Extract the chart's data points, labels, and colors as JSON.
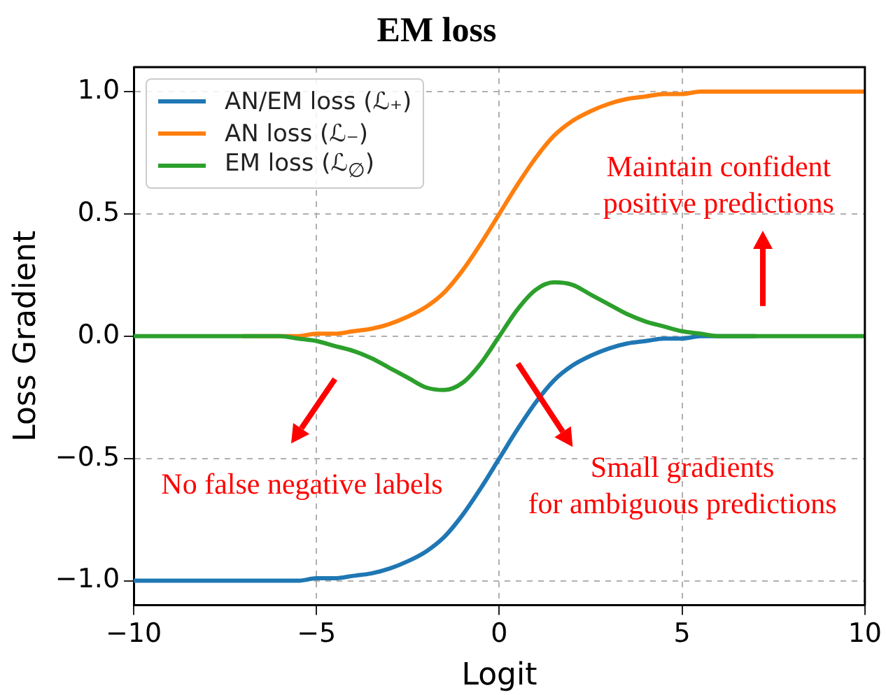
{
  "chart_data": {
    "type": "line",
    "title": "EM loss",
    "xlabel": "Logit",
    "ylabel": "Loss Gradient",
    "x": [
      -10,
      -8,
      -7,
      -6,
      -5.5,
      -5,
      -4.5,
      -4,
      -3.5,
      -3,
      -2.5,
      -2,
      -1.5,
      -1,
      -0.5,
      0,
      0.5,
      1,
      1.5,
      2,
      2.5,
      3,
      3.5,
      4,
      4.5,
      5,
      5.5,
      6,
      7,
      8,
      10
    ],
    "series": [
      {
        "name": "AN/EM loss (ℒ₊)",
        "color": "#1f77b4",
        "values": [
          -1,
          -1,
          -1,
          -1,
          -1,
          -0.99,
          -0.99,
          -0.98,
          -0.97,
          -0.95,
          -0.92,
          -0.88,
          -0.82,
          -0.73,
          -0.62,
          -0.5,
          -0.38,
          -0.27,
          -0.18,
          -0.12,
          -0.08,
          -0.05,
          -0.03,
          -0.02,
          -0.01,
          -0.01,
          0,
          0,
          0,
          null,
          null
        ]
      },
      {
        "name": "AN loss (ℒ₋)",
        "color": "#ff7f0e",
        "values": [
          null,
          null,
          0,
          0,
          0,
          0.01,
          0.01,
          0.02,
          0.03,
          0.05,
          0.08,
          0.12,
          0.18,
          0.27,
          0.38,
          0.5,
          0.62,
          0.73,
          0.82,
          0.88,
          0.92,
          0.95,
          0.97,
          0.98,
          0.99,
          0.99,
          1,
          1,
          1,
          1,
          1
        ]
      },
      {
        "name": "EM loss (ℒ$_{∅}$)",
        "color": "#2ca02c",
        "values": [
          0,
          0,
          0,
          0,
          -0.01,
          -0.02,
          -0.04,
          -0.06,
          -0.09,
          -0.13,
          -0.17,
          -0.21,
          -0.22,
          -0.19,
          -0.11,
          0,
          0.11,
          0.19,
          0.22,
          0.21,
          0.17,
          0.13,
          0.09,
          0.06,
          0.04,
          0.02,
          0.01,
          0,
          0,
          0,
          0
        ]
      }
    ],
    "xlim": [
      -10,
      10
    ],
    "ylim": [
      -1.1,
      1.1
    ],
    "xticks": [
      {
        "value": -10,
        "label": "−10"
      },
      {
        "value": -5,
        "label": "−5"
      },
      0,
      5,
      10
    ],
    "yticks": [
      {
        "value": -1,
        "label": "−1.0"
      },
      {
        "value": -0.5,
        "label": "−0.5"
      },
      {
        "value": 0,
        "label": "0.0"
      },
      {
        "value": 0.5,
        "label": "0.5"
      },
      {
        "value": 1,
        "label": "1.0"
      }
    ],
    "grid": true,
    "legend": "top left",
    "marker": "none",
    "line_style": "solid",
    "annotations": [
      "Maintain confident\npositive predictions",
      "No false negative labels",
      "Small gradients\nfor ambiguous predictions"
    ]
  }
}
